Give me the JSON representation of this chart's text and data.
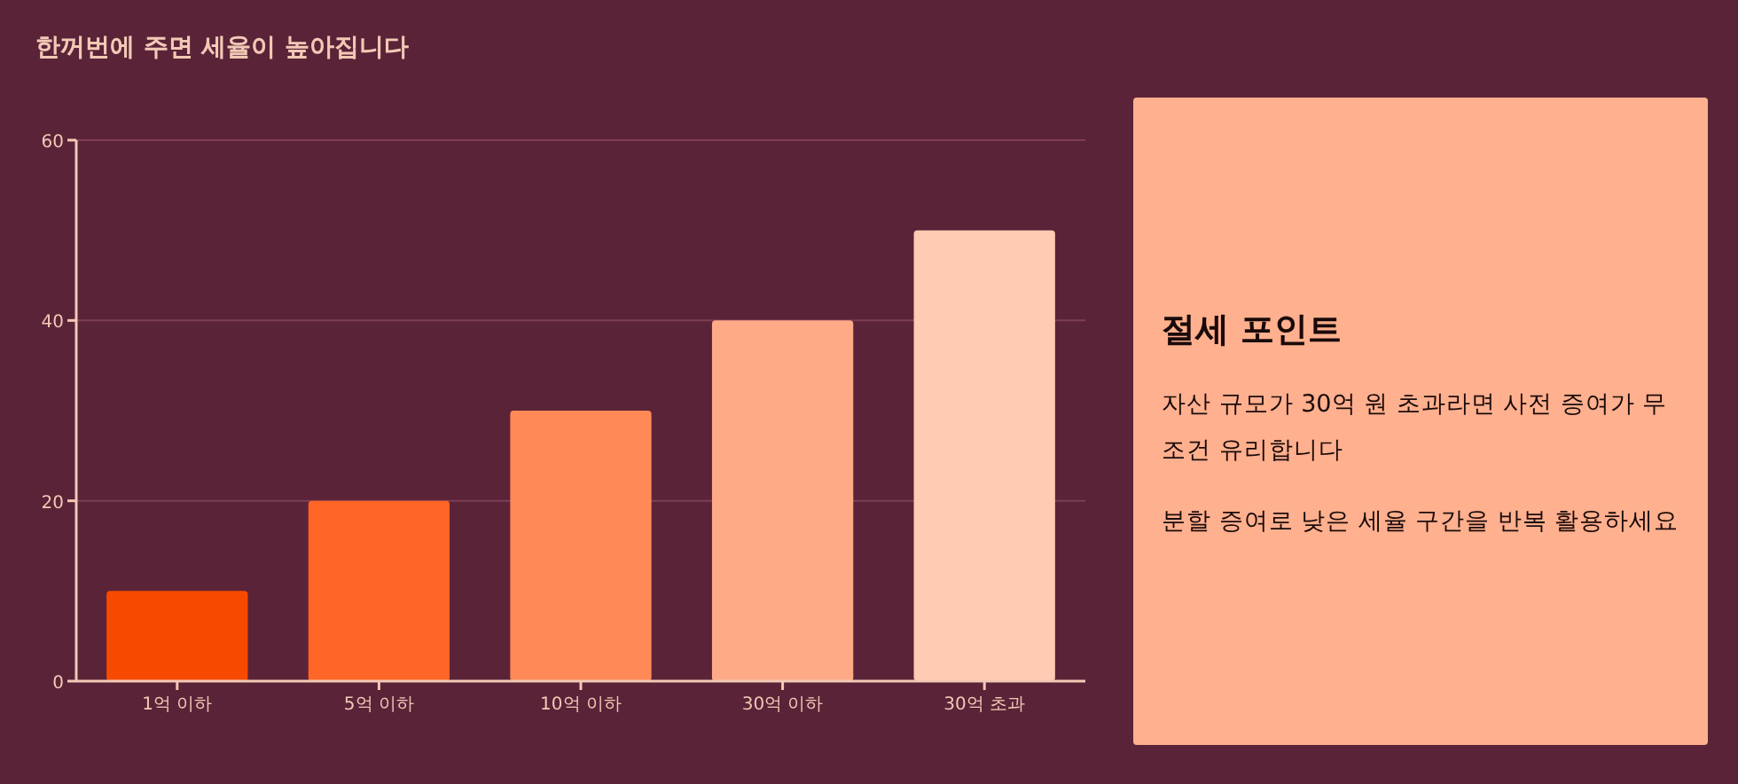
{
  "chart_data": [
    {
      "type": "bar",
      "title": "한꺼번에 주면 세율이 높아집니다",
      "categories": [
        "1억 이하",
        "5억 이하",
        "10억 이하",
        "30억 이하",
        "30억 초과"
      ],
      "values": [
        10,
        20,
        30,
        40,
        50
      ],
      "colors": [
        "#f54a00",
        "#ff6524",
        "#ff8957",
        "#ffaa87",
        "#ffcbb2"
      ],
      "ylim": [
        0,
        60
      ],
      "yticks": [
        0,
        20,
        40,
        60
      ],
      "grid": "y"
    },
    {
      "type": "other",
      "title": "절세 포인트",
      "annotations": [
        "자산 규모가 30억 원 초과라면 사전 증여가 무조건 유리합니다",
        "분할 증여로 낮은 세율 구간을 반복 활용하세요"
      ]
    }
  ]
}
